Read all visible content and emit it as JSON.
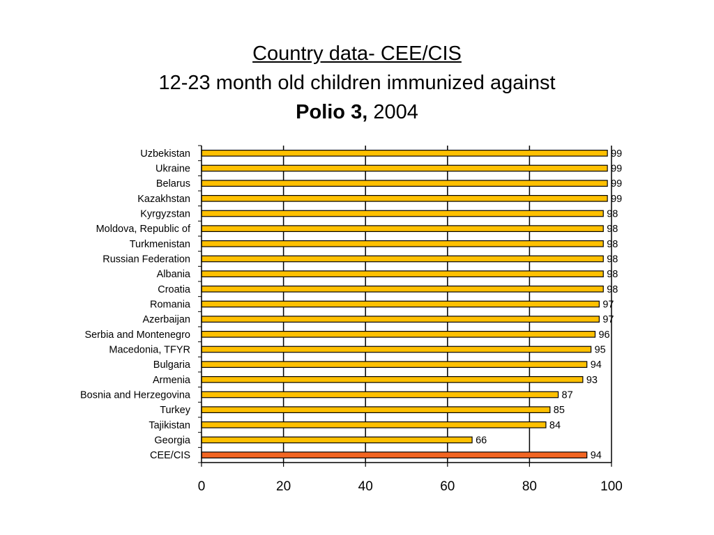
{
  "title": {
    "line1": "Country data- CEE/CIS",
    "line2": "12-23 month old children immunized against",
    "line3_bold": "Polio 3,",
    "line3_year": "2004"
  },
  "chart_data": {
    "type": "bar",
    "orientation": "horizontal",
    "categories": [
      "Uzbekistan",
      "Ukraine",
      "Belarus",
      "Kazakhstan",
      "Kyrgyzstan",
      "Moldova, Republic of",
      "Turkmenistan",
      "Russian Federation",
      "Albania",
      "Croatia",
      "Romania",
      "Azerbaijan",
      "Serbia and Montenegro",
      "Macedonia, TFYR",
      "Bulgaria",
      "Armenia",
      "Bosnia and Herzegovina",
      "Turkey",
      "Tajikistan",
      "Georgia",
      "CEE/CIS"
    ],
    "values": [
      99,
      99,
      99,
      99,
      98,
      98,
      98,
      98,
      98,
      98,
      97,
      97,
      96,
      95,
      94,
      93,
      87,
      85,
      84,
      66,
      94
    ],
    "xlim": [
      0,
      100
    ],
    "xticks": [
      0,
      20,
      40,
      60,
      80,
      100
    ],
    "grid": true,
    "colors": {
      "bar": "#FFC000",
      "highlight_bar": "#F26522",
      "bar_stroke": "#000000"
    },
    "highlight_category": "CEE/CIS"
  }
}
